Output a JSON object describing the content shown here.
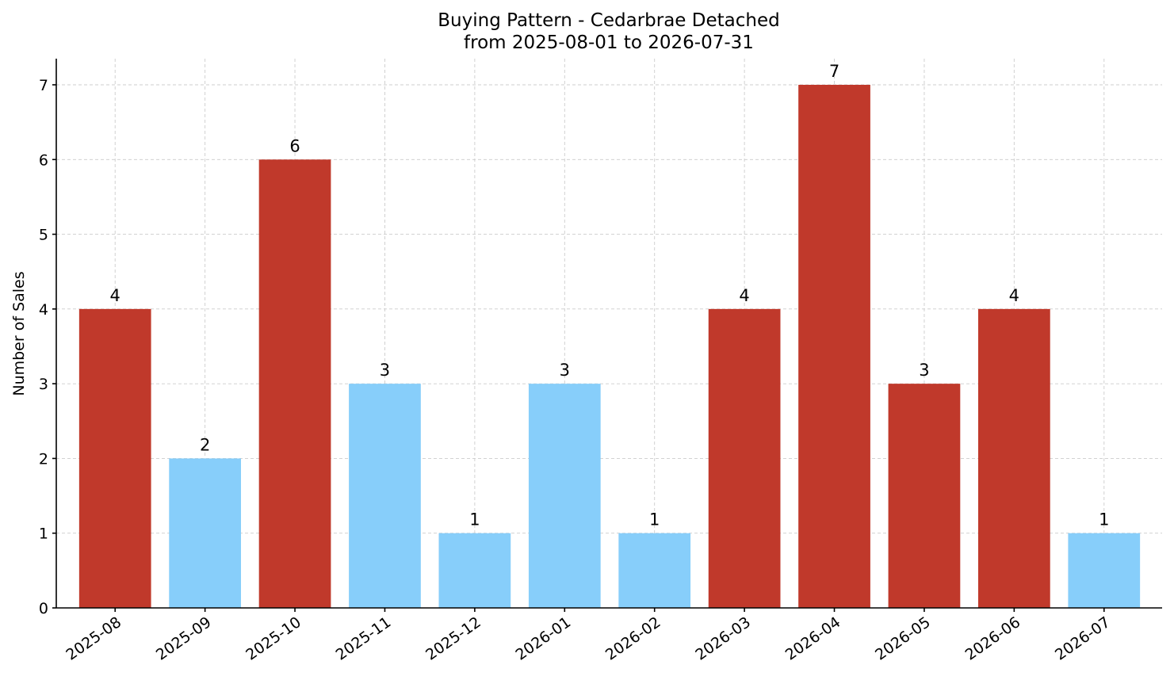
{
  "chart_data": {
    "type": "bar",
    "title": "Buying Pattern - Cedarbrae Detached",
    "subtitle": "from 2025-08-01 to 2026-07-31",
    "xlabel": "",
    "ylabel": "Number of Sales",
    "categories": [
      "2025-08",
      "2025-09",
      "2025-10",
      "2025-11",
      "2025-12",
      "2026-01",
      "2026-02",
      "2026-03",
      "2026-04",
      "2026-05",
      "2026-06",
      "2026-07"
    ],
    "values": [
      4,
      2,
      6,
      3,
      1,
      3,
      1,
      4,
      7,
      3,
      4,
      1
    ],
    "bar_colors": [
      "#c0392b",
      "#87cefa",
      "#c0392b",
      "#87cefa",
      "#87cefa",
      "#87cefa",
      "#87cefa",
      "#c0392b",
      "#c0392b",
      "#c0392b",
      "#c0392b",
      "#87cefa"
    ],
    "ylim": [
      0,
      7.35
    ],
    "yticks": [
      0,
      1,
      2,
      3,
      4,
      5,
      6,
      7
    ],
    "grid": true,
    "data_labels": true,
    "x_tick_rotation_deg": 35
  }
}
